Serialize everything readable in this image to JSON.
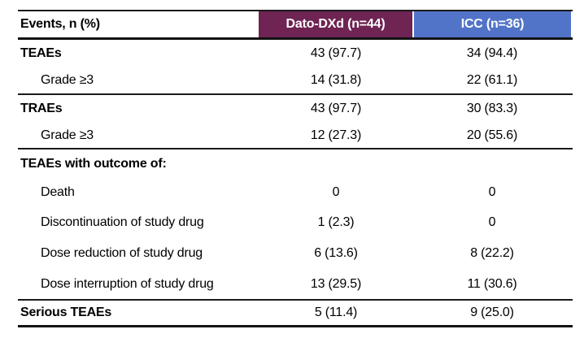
{
  "table": {
    "title_column_header": "Events, n (%)",
    "arm_headers": [
      {
        "label": "Dato-DXd (n=44)",
        "bg_color": "#6F2453"
      },
      {
        "label": "ICC (n=36)",
        "bg_color": "#5274C8"
      }
    ],
    "colors": {
      "dato_header_bg": "#6F2453",
      "icc_header_bg": "#5274C8",
      "header_text": "#FFFFFF",
      "body_text": "#000000",
      "rule_line": "#1A1A1A"
    },
    "rows": [
      {
        "label": "TEAEs",
        "dato": "43 (97.7)",
        "icc": "34 (94.4)"
      },
      {
        "label": "Grade ≥3",
        "dato": "14 (31.8)",
        "icc": "22 (61.1)"
      },
      {
        "label": "TRAEs",
        "dato": "43 (97.7)",
        "icc": "30 (83.3)"
      },
      {
        "label": "Grade ≥3",
        "dato": "12 (27.3)",
        "icc": "20 (55.6)"
      },
      {
        "label": "TEAEs with outcome of:",
        "dato": "",
        "icc": ""
      },
      {
        "label": "Death",
        "dato": "0",
        "icc": "0"
      },
      {
        "label": "Discontinuation of study drug",
        "dato": "1 (2.3)",
        "icc": "0"
      },
      {
        "label": "Dose reduction of study drug",
        "dato": "6 (13.6)",
        "icc": "8 (22.2)"
      },
      {
        "label": "Dose interruption of study drug",
        "dato": "13 (29.5)",
        "icc": "11 (30.6)"
      },
      {
        "label": "Serious TEAEs",
        "dato": "5 (11.4)",
        "icc": "9 (25.0)"
      }
    ]
  }
}
